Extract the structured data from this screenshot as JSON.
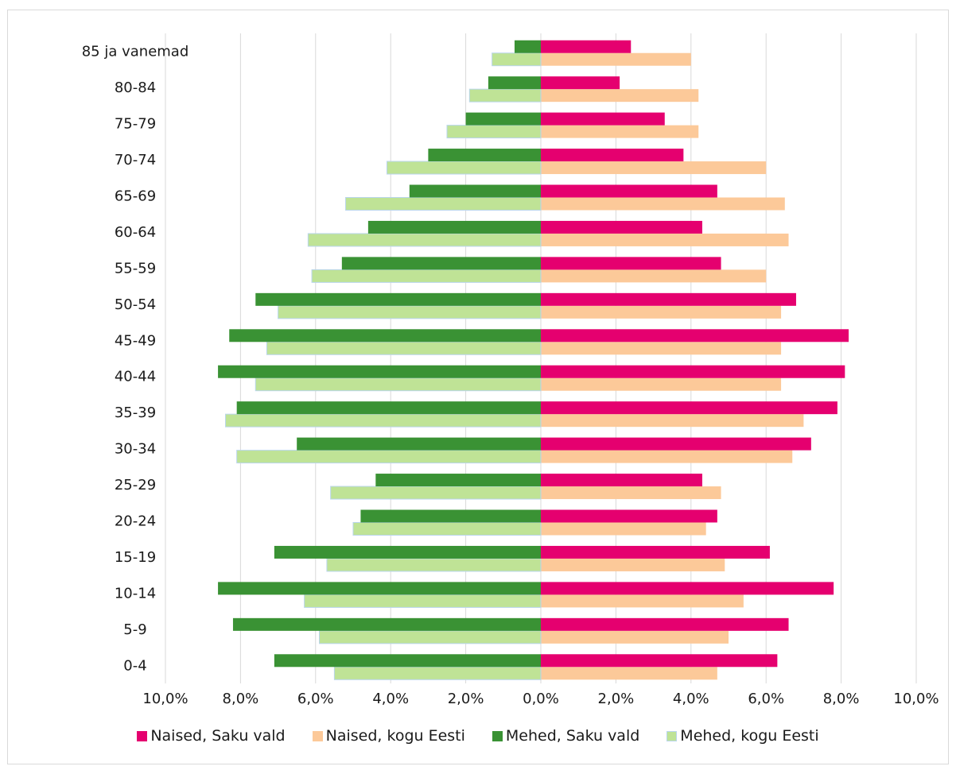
{
  "chart_data": {
    "type": "bar",
    "orientation": "horizontal",
    "layout": "population-pyramid",
    "categories": [
      "0-4",
      "5-9",
      "10-14",
      "15-19",
      "20-24",
      "25-29",
      "30-34",
      "35-39",
      "40-44",
      "45-49",
      "50-54",
      "55-59",
      "60-64",
      "65-69",
      "70-74",
      "75-79",
      "80-84",
      "85 ja vanemad"
    ],
    "series": [
      {
        "name": "Naised, Saku vald",
        "side": "right",
        "color": "#e5006f",
        "values": [
          6.3,
          6.6,
          7.8,
          6.1,
          4.7,
          4.3,
          7.2,
          7.9,
          8.1,
          8.2,
          6.8,
          4.8,
          4.3,
          4.7,
          3.8,
          3.3,
          2.1,
          2.4
        ]
      },
      {
        "name": "Naised, kogu Eesti",
        "side": "right",
        "color": "#fcc999",
        "values": [
          4.7,
          5.0,
          5.4,
          4.9,
          4.4,
          4.8,
          6.7,
          7.0,
          6.4,
          6.4,
          6.4,
          6.0,
          6.6,
          6.5,
          6.0,
          4.2,
          4.2,
          4.0
        ]
      },
      {
        "name": "Mehed, Saku vald",
        "side": "left",
        "color": "#3a9234",
        "values": [
          7.1,
          8.2,
          8.6,
          7.1,
          4.8,
          4.4,
          6.5,
          8.1,
          8.6,
          8.3,
          7.6,
          5.3,
          4.6,
          3.5,
          3.0,
          2.0,
          1.4,
          0.7
        ]
      },
      {
        "name": "Mehed, kogu Eesti",
        "side": "left",
        "color": "#bfe396",
        "values": [
          5.5,
          5.9,
          6.3,
          5.7,
          5.0,
          5.6,
          8.1,
          8.4,
          7.6,
          7.3,
          7.0,
          6.1,
          6.2,
          5.2,
          4.1,
          2.5,
          1.9,
          1.3
        ]
      }
    ],
    "x_ticks": [
      "10,0%",
      "8,0%",
      "6,0%",
      "4,0%",
      "2,0%",
      "0,0%",
      "2,0%",
      "4,0%",
      "6,0%",
      "8,0%",
      "10,0%"
    ],
    "xlim": [
      -10,
      10
    ],
    "grid": "vertical",
    "legend_position": "bottom",
    "title": "",
    "xlabel": "",
    "ylabel": ""
  },
  "legend": {
    "women_saku": "Naised, Saku vald",
    "women_estonia": "Naised, kogu Eesti",
    "men_saku": "Mehed, Saku vald",
    "men_estonia": "Mehed, kogu Eesti"
  },
  "colors": {
    "women_saku": "#e5006f",
    "women_estonia": "#fcc999",
    "men_saku": "#3a9234",
    "men_estonia": "#bfe396"
  }
}
